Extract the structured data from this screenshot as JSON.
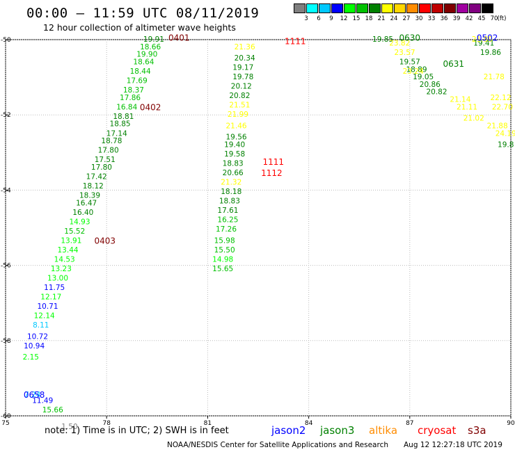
{
  "header": {
    "title": "00:00 – 11:59 UTC 08/11/2019",
    "subtitle": "12 hour collection of altimeter wave heights"
  },
  "colorbar": {
    "unit_label": "(ft)",
    "bins": [
      {
        "label": "3",
        "color": "#808080"
      },
      {
        "label": "6",
        "color": "#00ffff"
      },
      {
        "label": "9",
        "color": "#00c8ff"
      },
      {
        "label": "12",
        "color": "#0000ff"
      },
      {
        "label": "15",
        "color": "#00ff00"
      },
      {
        "label": "18",
        "color": "#00c000"
      },
      {
        "label": "21",
        "color": "#008000"
      },
      {
        "label": "24",
        "color": "#ffff00"
      },
      {
        "label": "27",
        "color": "#ffd700"
      },
      {
        "label": "30",
        "color": "#ff8c00"
      },
      {
        "label": "33",
        "color": "#ff0000"
      },
      {
        "label": "36",
        "color": "#c00000"
      },
      {
        "label": "39",
        "color": "#800000"
      },
      {
        "label": "42",
        "color": "#a000a0"
      },
      {
        "label": "45",
        "color": "#800080"
      },
      {
        "label": "70",
        "color": "#000000"
      }
    ]
  },
  "chart_data": {
    "type": "scatter",
    "title": "00:00 – 11:59 UTC 08/11/2019",
    "subtitle": "12 hour collection of altimeter wave heights",
    "xlim": [
      75,
      90
    ],
    "ylim": [
      -60,
      -50
    ],
    "x_ticks": [
      "75",
      "78",
      "81",
      "84",
      "87",
      "90"
    ],
    "y_ticks": [
      "-50",
      "-52",
      "-54",
      "-56",
      "-58",
      "-60"
    ],
    "grid": true,
    "points": [
      {
        "lon": 79.4,
        "lat": -50.0,
        "v": "19.91",
        "c": "#008000"
      },
      {
        "lon": 79.3,
        "lat": -50.2,
        "v": "18.66",
        "c": "#00c000"
      },
      {
        "lon": 79.2,
        "lat": -50.4,
        "v": "19.90",
        "c": "#00c000"
      },
      {
        "lon": 79.1,
        "lat": -50.6,
        "v": "18.64",
        "c": "#00c000"
      },
      {
        "lon": 79.0,
        "lat": -50.85,
        "v": "18.44",
        "c": "#00c000"
      },
      {
        "lon": 78.9,
        "lat": -51.1,
        "v": "17.69",
        "c": "#00c000"
      },
      {
        "lon": 78.8,
        "lat": -51.35,
        "v": "18.37",
        "c": "#00c000"
      },
      {
        "lon": 78.7,
        "lat": -51.55,
        "v": "17.86",
        "c": "#00c000"
      },
      {
        "lon": 78.6,
        "lat": -51.8,
        "v": "16.84",
        "c": "#00c000"
      },
      {
        "lon": 78.5,
        "lat": -52.05,
        "v": "18.81",
        "c": "#008000"
      },
      {
        "lon": 78.4,
        "lat": -52.25,
        "v": "18.85",
        "c": "#008000"
      },
      {
        "lon": 78.3,
        "lat": -52.5,
        "v": "17.14",
        "c": "#008000"
      },
      {
        "lon": 78.15,
        "lat": -52.7,
        "v": "18.78",
        "c": "#008000"
      },
      {
        "lon": 78.05,
        "lat": -52.95,
        "v": "17.80",
        "c": "#008000"
      },
      {
        "lon": 77.95,
        "lat": -53.2,
        "v": "17.51",
        "c": "#008000"
      },
      {
        "lon": 77.85,
        "lat": -53.4,
        "v": "17.80",
        "c": "#008000"
      },
      {
        "lon": 77.7,
        "lat": -53.65,
        "v": "17.42",
        "c": "#008000"
      },
      {
        "lon": 77.6,
        "lat": -53.9,
        "v": "18.12",
        "c": "#008000"
      },
      {
        "lon": 77.5,
        "lat": -54.15,
        "v": "18.39",
        "c": "#008000"
      },
      {
        "lon": 77.4,
        "lat": -54.35,
        "v": "16.47",
        "c": "#008000"
      },
      {
        "lon": 77.3,
        "lat": -54.6,
        "v": "16.40",
        "c": "#008000"
      },
      {
        "lon": 77.2,
        "lat": -54.85,
        "v": "14.93",
        "c": "#00ff00"
      },
      {
        "lon": 77.05,
        "lat": -55.1,
        "v": "15.52",
        "c": "#00c000"
      },
      {
        "lon": 76.95,
        "lat": -55.35,
        "v": "13.91",
        "c": "#00ff00"
      },
      {
        "lon": 76.85,
        "lat": -55.6,
        "v": "13.44",
        "c": "#00ff00"
      },
      {
        "lon": 76.75,
        "lat": -55.85,
        "v": "14.53",
        "c": "#00ff00"
      },
      {
        "lon": 76.65,
        "lat": -56.1,
        "v": "13.23",
        "c": "#00ff00"
      },
      {
        "lon": 76.55,
        "lat": -56.35,
        "v": "13.00",
        "c": "#00ff00"
      },
      {
        "lon": 76.45,
        "lat": -56.6,
        "v": "11.75",
        "c": "#0000ff"
      },
      {
        "lon": 76.35,
        "lat": -56.85,
        "v": "12.17",
        "c": "#00ff00"
      },
      {
        "lon": 76.25,
        "lat": -57.1,
        "v": "10.71",
        "c": "#0000ff"
      },
      {
        "lon": 76.15,
        "lat": -57.35,
        "v": "12.14",
        "c": "#00ff00"
      },
      {
        "lon": 76.05,
        "lat": -57.6,
        "v": "8.11",
        "c": "#00c8ff"
      },
      {
        "lon": 75.95,
        "lat": -57.9,
        "v": "10.72",
        "c": "#0000ff"
      },
      {
        "lon": 75.85,
        "lat": -58.15,
        "v": "10.94",
        "c": "#0000ff"
      },
      {
        "lon": 75.75,
        "lat": -58.45,
        "v": "2.15",
        "c": "#00ff00"
      },
      {
        "lon": 75.8,
        "lat": -59.45,
        "v": "7.24",
        "c": "#00c8ff"
      },
      {
        "lon": 76.1,
        "lat": -59.6,
        "v": "11.49",
        "c": "#0000ff"
      },
      {
        "lon": 76.4,
        "lat": -59.85,
        "v": "15.66",
        "c": "#00c000"
      },
      {
        "lon": 76.9,
        "lat": -60.3,
        "v": "1.50",
        "c": "#808080"
      },
      {
        "lon": 82.1,
        "lat": -50.2,
        "v": "21.36",
        "c": "#ffff00"
      },
      {
        "lon": 82.1,
        "lat": -50.5,
        "v": "20.34",
        "c": "#008000"
      },
      {
        "lon": 82.05,
        "lat": -50.75,
        "v": "19.17",
        "c": "#008000"
      },
      {
        "lon": 82.05,
        "lat": -51.0,
        "v": "19.78",
        "c": "#008000"
      },
      {
        "lon": 82.0,
        "lat": -51.25,
        "v": "20.12",
        "c": "#008000"
      },
      {
        "lon": 81.95,
        "lat": -51.5,
        "v": "20.82",
        "c": "#008000"
      },
      {
        "lon": 81.95,
        "lat": -51.75,
        "v": "21.51",
        "c": "#ffff00"
      },
      {
        "lon": 81.9,
        "lat": -52.0,
        "v": "21.99",
        "c": "#ffff00"
      },
      {
        "lon": 81.85,
        "lat": -52.3,
        "v": "21.46",
        "c": "#ffff00"
      },
      {
        "lon": 81.85,
        "lat": -52.6,
        "v": "19.56",
        "c": "#008000"
      },
      {
        "lon": 81.8,
        "lat": -52.8,
        "v": "19.40",
        "c": "#008000"
      },
      {
        "lon": 81.8,
        "lat": -53.05,
        "v": "19.58",
        "c": "#008000"
      },
      {
        "lon": 81.75,
        "lat": -53.3,
        "v": "18.83",
        "c": "#008000"
      },
      {
        "lon": 81.75,
        "lat": -53.55,
        "v": "20.66",
        "c": "#008000"
      },
      {
        "lon": 81.7,
        "lat": -53.8,
        "v": "21.32",
        "c": "#ffff00"
      },
      {
        "lon": 81.7,
        "lat": -54.05,
        "v": "18.18",
        "c": "#008000"
      },
      {
        "lon": 81.65,
        "lat": -54.3,
        "v": "18.83",
        "c": "#008000"
      },
      {
        "lon": 81.6,
        "lat": -54.55,
        "v": "17.61",
        "c": "#008000"
      },
      {
        "lon": 81.6,
        "lat": -54.8,
        "v": "16.25",
        "c": "#00c000"
      },
      {
        "lon": 81.55,
        "lat": -55.05,
        "v": "17.26",
        "c": "#00c000"
      },
      {
        "lon": 81.5,
        "lat": -55.35,
        "v": "15.98",
        "c": "#00c000"
      },
      {
        "lon": 81.5,
        "lat": -55.6,
        "v": "15.50",
        "c": "#00c000"
      },
      {
        "lon": 81.45,
        "lat": -55.85,
        "v": "14.98",
        "c": "#00ff00"
      },
      {
        "lon": 81.45,
        "lat": -56.1,
        "v": "15.65",
        "c": "#00c000"
      },
      {
        "lon": 86.2,
        "lat": -50.0,
        "v": "19.85",
        "c": "#008000"
      },
      {
        "lon": 87.0,
        "lat": -50.6,
        "v": "19.57",
        "c": "#008000"
      },
      {
        "lon": 87.2,
        "lat": -50.8,
        "v": "18.89",
        "c": "#008000"
      },
      {
        "lon": 87.4,
        "lat": -51.0,
        "v": "19.05",
        "c": "#008000"
      },
      {
        "lon": 87.6,
        "lat": -51.2,
        "v": "20.86",
        "c": "#008000"
      },
      {
        "lon": 87.8,
        "lat": -51.4,
        "v": "20.82",
        "c": "#008000"
      },
      {
        "lon": 89.2,
        "lat": -50.1,
        "v": "19.41",
        "c": "#008000"
      },
      {
        "lon": 89.4,
        "lat": -50.35,
        "v": "19.86",
        "c": "#008000"
      },
      {
        "lon": 89.85,
        "lat": -52.5,
        "v": "24.19",
        "c": "#ffff00"
      },
      {
        "lon": 89.85,
        "lat": -52.8,
        "v": "19.8",
        "c": "#008000"
      },
      {
        "lon": 86.7,
        "lat": -50.1,
        "v": "23.82",
        "c": "#ffff00"
      },
      {
        "lon": 86.85,
        "lat": -50.35,
        "v": "23.57",
        "c": "#ffff00"
      },
      {
        "lon": 87.1,
        "lat": -50.85,
        "v": "23.24",
        "c": "#ffff00"
      },
      {
        "lon": 89.15,
        "lat": -50.0,
        "v": "21.89",
        "c": "#ffff00"
      },
      {
        "lon": 88.5,
        "lat": -51.6,
        "v": "21.14",
        "c": "#ffff00"
      },
      {
        "lon": 88.7,
        "lat": -51.8,
        "v": "21.11",
        "c": "#ffff00"
      },
      {
        "lon": 88.9,
        "lat": -52.1,
        "v": "21.02",
        "c": "#ffff00"
      },
      {
        "lon": 89.5,
        "lat": -51.0,
        "v": "21.78",
        "c": "#ffff00"
      },
      {
        "lon": 89.7,
        "lat": -51.55,
        "v": "22.12",
        "c": "#ffff00"
      },
      {
        "lon": 89.75,
        "lat": -51.8,
        "v": "22.70",
        "c": "#ffff00"
      },
      {
        "lon": 89.6,
        "lat": -52.3,
        "v": "21.88",
        "c": "#ffff00"
      }
    ],
    "pass_labels": [
      {
        "lon": 80.15,
        "lat": -49.95,
        "v": "0401",
        "c": "#800000"
      },
      {
        "lon": 79.3,
        "lat": -51.8,
        "v": "0402",
        "c": "#800000"
      },
      {
        "lon": 77.95,
        "lat": -55.35,
        "v": "0403",
        "c": "#800000"
      },
      {
        "lon": 83.6,
        "lat": -50.05,
        "v": "1111",
        "c": "#ff0000"
      },
      {
        "lon": 82.95,
        "lat": -53.25,
        "v": "1111",
        "c": "#ff0000"
      },
      {
        "lon": 82.9,
        "lat": -53.55,
        "v": "1112",
        "c": "#ff0000"
      },
      {
        "lon": 87.0,
        "lat": -49.95,
        "v": "0630",
        "c": "#008000"
      },
      {
        "lon": 88.3,
        "lat": -50.65,
        "v": "0631",
        "c": "#008000"
      },
      {
        "lon": 89.3,
        "lat": -49.95,
        "v": "0502",
        "c": "#0000ff"
      },
      {
        "lon": 75.85,
        "lat": -59.45,
        "v": "0658",
        "c": "#0000ff"
      }
    ]
  },
  "legend": {
    "note": "note: 1) Time is in UTC; 2) SWH is in feet",
    "satellites": [
      {
        "name": "jason2",
        "color": "#0000ff"
      },
      {
        "name": "jason3",
        "color": "#008000"
      },
      {
        "name": "altika",
        "color": "#ff8c00"
      },
      {
        "name": "cryosat",
        "color": "#ff0000"
      },
      {
        "name": "s3a",
        "color": "#800000"
      }
    ]
  },
  "footer": {
    "credit": "NOAA/NESDIS Center for Satellite Applications and Research",
    "timestamp": "Aug 12 12:27:18 UTC 2019"
  }
}
